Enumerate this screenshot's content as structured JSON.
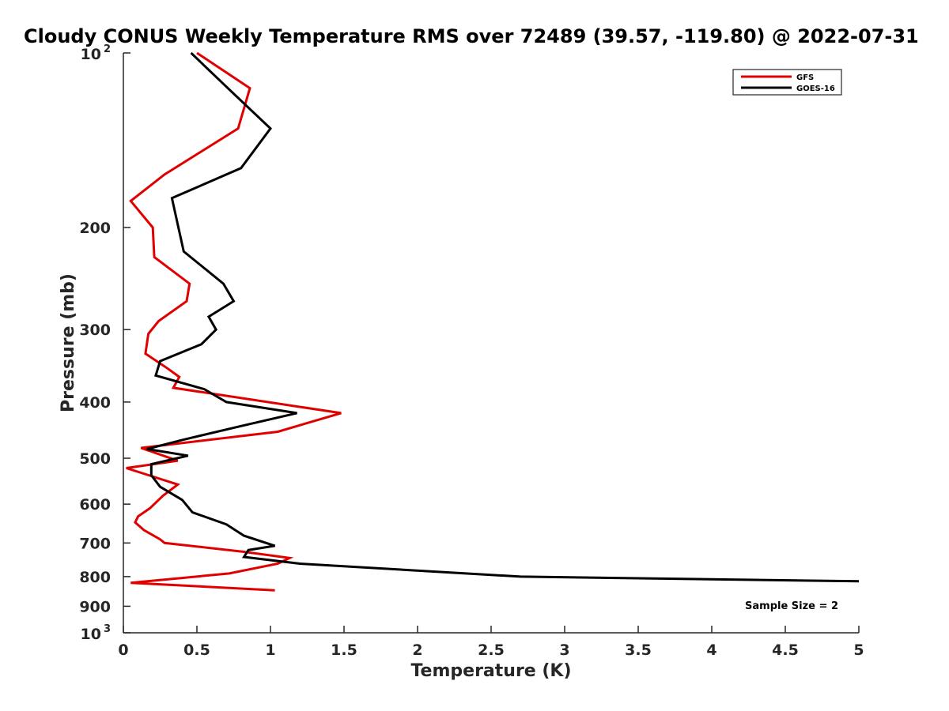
{
  "chart_data": {
    "type": "line",
    "title": "Cloudy CONUS Weekly Temperature RMS over 72489 (39.57, -119.80) @ 2022-07-31",
    "xlabel": "Temperature (K)",
    "ylabel": "Pressure (mb)",
    "xlim": [
      0,
      5
    ],
    "ylim": [
      100,
      1000
    ],
    "y_scale": "log",
    "y_reversed": true,
    "x_ticks": [
      "0",
      "0.5",
      "1",
      "1.5",
      "2",
      "2.5",
      "3",
      "3.5",
      "4",
      "4.5",
      "5"
    ],
    "y_ticks": [
      {
        "value": 100,
        "base": "10",
        "exp": "2"
      },
      {
        "value": 200,
        "label": "200"
      },
      {
        "value": 300,
        "label": "300"
      },
      {
        "value": 400,
        "label": "400"
      },
      {
        "value": 500,
        "label": "500"
      },
      {
        "value": 600,
        "label": "600"
      },
      {
        "value": 700,
        "label": "700"
      },
      {
        "value": 800,
        "label": "800"
      },
      {
        "value": 900,
        "label": "900"
      },
      {
        "value": 1000,
        "base": "10",
        "exp": "3"
      }
    ],
    "grid": false,
    "legend_position": "top-right",
    "annotation": "Sample Size = 2",
    "series": [
      {
        "name": "GFS",
        "color": "#e00000",
        "x": [
          0.5,
          0.86,
          0.78,
          0.28,
          0.05,
          0.2,
          0.21,
          0.45,
          0.43,
          0.24,
          0.17,
          0.15,
          0.3,
          0.38,
          0.34,
          1.48,
          1.05,
          0.12,
          0.37,
          0.02,
          0.37,
          0.27,
          0.18,
          0.1,
          0.08,
          0.14,
          0.25,
          0.28,
          0.82,
          1.13,
          1.05,
          0.72,
          0.05,
          1.03
        ],
        "y": [
          100,
          115,
          135,
          162,
          180,
          200,
          225,
          250,
          268,
          290,
          305,
          330,
          350,
          362,
          378,
          418,
          450,
          480,
          505,
          520,
          555,
          580,
          610,
          630,
          645,
          665,
          690,
          700,
          725,
          743,
          760,
          790,
          820,
          845
        ]
      },
      {
        "name": "GOES-16",
        "color": "#000000",
        "x": [
          0.46,
          0.71,
          1.0,
          0.8,
          0.33,
          0.41,
          0.68,
          0.75,
          0.58,
          0.63,
          0.53,
          0.25,
          0.22,
          0.55,
          0.7,
          1.18,
          0.8,
          0.4,
          0.16,
          0.44,
          0.19,
          0.19,
          0.25,
          0.4,
          0.47,
          0.7,
          0.82,
          1.03,
          0.85,
          0.82,
          1.2,
          2.7,
          5.0
        ],
        "y": [
          100,
          115,
          135,
          158,
          178,
          220,
          250,
          268,
          285,
          300,
          318,
          340,
          360,
          380,
          400,
          418,
          440,
          465,
          482,
          495,
          512,
          535,
          560,
          590,
          620,
          650,
          680,
          708,
          720,
          740,
          760,
          800,
          815
        ]
      }
    ]
  }
}
